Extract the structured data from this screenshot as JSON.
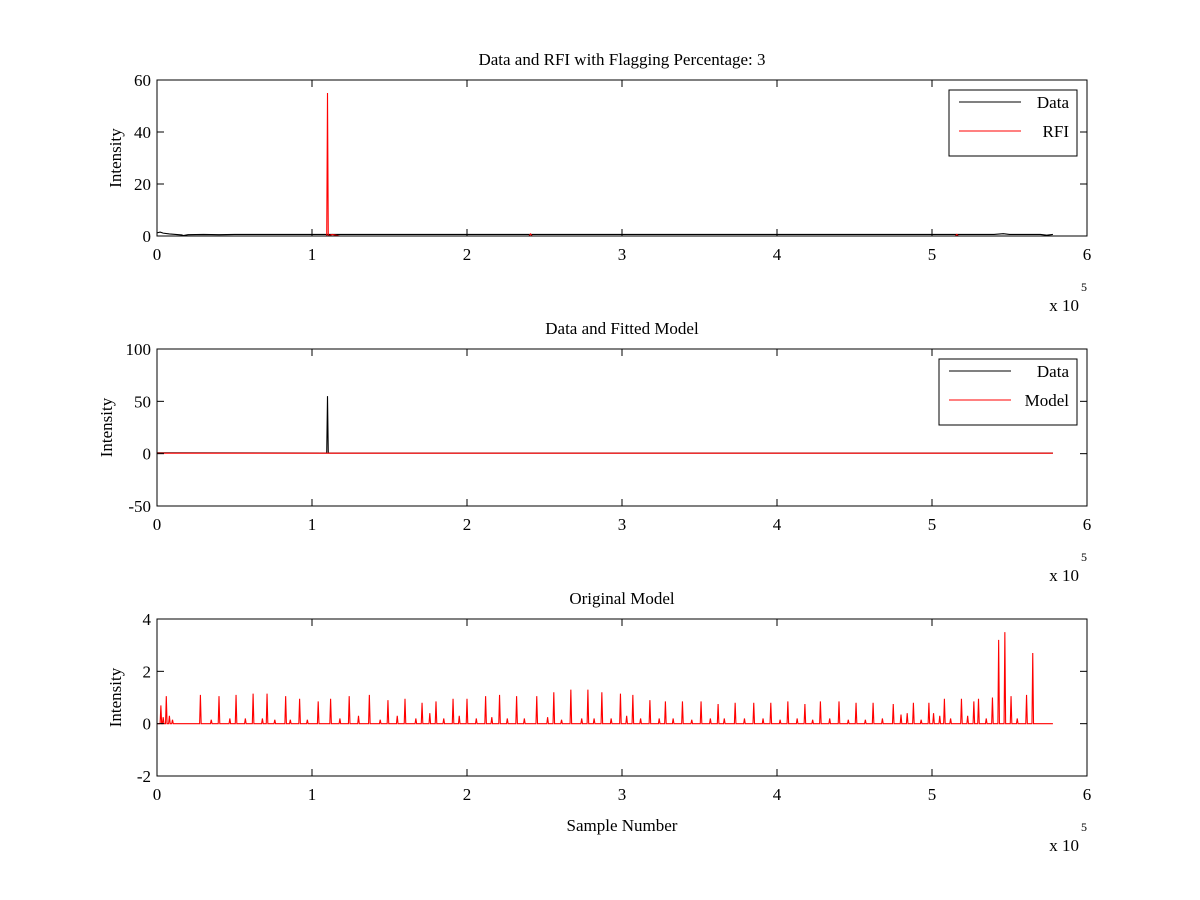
{
  "chart_data": [
    {
      "type": "line",
      "title": "Data and RFI with Flagging Percentage: 3",
      "xlabel": "",
      "ylabel": "Intensity",
      "xlim": [
        0,
        600000
      ],
      "ylim": [
        0,
        60
      ],
      "xticks": [
        0,
        1,
        2,
        3,
        4,
        5,
        6
      ],
      "yticks": [
        0,
        20,
        40,
        60
      ],
      "x_multiplier_base": "x 10",
      "x_multiplier_exp": "5",
      "legend_placement": "top-right",
      "legend": [
        "Data",
        "RFI"
      ],
      "grid": false,
      "series": [
        {
          "name": "Data",
          "color": "#000000",
          "x": [
            0,
            2000,
            4000,
            8000,
            12000,
            16000,
            17000,
            20000,
            30000,
            40000,
            50000,
            80000,
            110000,
            150000,
            200000,
            250000,
            300000,
            350000,
            400000,
            450000,
            500000,
            540000,
            546000,
            550000,
            570000,
            574000,
            578000
          ],
          "y": [
            1.2,
            1.5,
            1.1,
            0.8,
            0.6,
            0.4,
            0.2,
            0.5,
            0.6,
            0.5,
            0.6,
            0.6,
            0.6,
            0.6,
            0.6,
            0.6,
            0.6,
            0.6,
            0.6,
            0.6,
            0.6,
            0.6,
            0.9,
            0.6,
            0.6,
            0.3,
            0.6
          ]
        },
        {
          "name": "RFI",
          "color": "#ff0000",
          "x": [
            0,
            109500,
            110000,
            110500,
            113000,
            118000,
            240000,
            241000,
            242000,
            515000,
            516000,
            517000
          ],
          "y": [
            0,
            0,
            55,
            0,
            0.6,
            0,
            0,
            0.8,
            0,
            0,
            0.6,
            0
          ]
        }
      ]
    },
    {
      "type": "line",
      "title": "Data and Fitted Model",
      "xlabel": "",
      "ylabel": "Intensity",
      "xlim": [
        0,
        600000
      ],
      "ylim": [
        -50,
        100
      ],
      "xticks": [
        0,
        1,
        2,
        3,
        4,
        5,
        6
      ],
      "yticks": [
        -50,
        0,
        50,
        100
      ],
      "x_multiplier_base": "x 10",
      "x_multiplier_exp": "5",
      "legend_placement": "top-right",
      "legend": [
        "Data",
        "Model"
      ],
      "grid": false,
      "series": [
        {
          "name": "Data",
          "color": "#000000",
          "x": [
            0,
            109500,
            110000,
            110500,
            578000
          ],
          "y": [
            0.8,
            0.6,
            55,
            0.6,
            0.6
          ]
        },
        {
          "name": "Model",
          "color": "#ff0000",
          "x": [
            0,
            578000
          ],
          "y": [
            0.5,
            0.5
          ]
        }
      ]
    },
    {
      "type": "line",
      "title": "Original Model",
      "xlabel": "Sample Number",
      "ylabel": "Intensity",
      "xlim": [
        0,
        600000
      ],
      "ylim": [
        -2,
        4
      ],
      "xticks": [
        0,
        1,
        2,
        3,
        4,
        5,
        6
      ],
      "yticks": [
        -2,
        0,
        2,
        4
      ],
      "x_multiplier_base": "x 10",
      "x_multiplier_exp": "5",
      "legend_placement": "none",
      "grid": false,
      "series": [
        {
          "name": "",
          "color": "#ff0000",
          "baseline": 0,
          "x_end": 578000,
          "peaks": [
            [
              2500,
              0.7
            ],
            [
              4000,
              0.25
            ],
            [
              6000,
              1.05
            ],
            [
              8000,
              0.3
            ],
            [
              10000,
              0.15
            ],
            [
              28000,
              1.1
            ],
            [
              35000,
              0.15
            ],
            [
              40000,
              1.05
            ],
            [
              47000,
              0.2
            ],
            [
              51000,
              1.1
            ],
            [
              57000,
              0.2
            ],
            [
              62000,
              1.15
            ],
            [
              68000,
              0.2
            ],
            [
              71000,
              1.15
            ],
            [
              76000,
              0.15
            ],
            [
              83000,
              1.05
            ],
            [
              86000,
              0.15
            ],
            [
              92000,
              0.95
            ],
            [
              97000,
              0.15
            ],
            [
              104000,
              0.85
            ],
            [
              112000,
              0.95
            ],
            [
              118000,
              0.2
            ],
            [
              124000,
              1.05
            ],
            [
              130000,
              0.3
            ],
            [
              137000,
              1.1
            ],
            [
              144000,
              0.15
            ],
            [
              149000,
              0.9
            ],
            [
              155000,
              0.3
            ],
            [
              160000,
              0.95
            ],
            [
              167000,
              0.2
            ],
            [
              171000,
              0.8
            ],
            [
              176000,
              0.4
            ],
            [
              180000,
              0.85
            ],
            [
              185000,
              0.2
            ],
            [
              191000,
              0.95
            ],
            [
              195000,
              0.3
            ],
            [
              200000,
              0.95
            ],
            [
              206000,
              0.2
            ],
            [
              212000,
              1.05
            ],
            [
              216000,
              0.25
            ],
            [
              221000,
              1.1
            ],
            [
              226000,
              0.2
            ],
            [
              232000,
              1.05
            ],
            [
              237000,
              0.2
            ],
            [
              245000,
              1.05
            ],
            [
              252000,
              0.25
            ],
            [
              256000,
              1.2
            ],
            [
              261000,
              0.15
            ],
            [
              267000,
              1.3
            ],
            [
              274000,
              0.2
            ],
            [
              278000,
              1.3
            ],
            [
              282000,
              0.2
            ],
            [
              287000,
              1.2
            ],
            [
              293000,
              0.2
            ],
            [
              299000,
              1.15
            ],
            [
              303000,
              0.3
            ],
            [
              307000,
              1.1
            ],
            [
              312000,
              0.2
            ],
            [
              318000,
              0.9
            ],
            [
              324000,
              0.2
            ],
            [
              328000,
              0.85
            ],
            [
              333000,
              0.2
            ],
            [
              339000,
              0.85
            ],
            [
              345000,
              0.15
            ],
            [
              351000,
              0.85
            ],
            [
              357000,
              0.2
            ],
            [
              362000,
              0.75
            ],
            [
              366000,
              0.2
            ],
            [
              373000,
              0.8
            ],
            [
              379000,
              0.2
            ],
            [
              385000,
              0.8
            ],
            [
              391000,
              0.2
            ],
            [
              396000,
              0.8
            ],
            [
              402000,
              0.15
            ],
            [
              407000,
              0.85
            ],
            [
              413000,
              0.2
            ],
            [
              418000,
              0.75
            ],
            [
              423000,
              0.15
            ],
            [
              428000,
              0.85
            ],
            [
              434000,
              0.2
            ],
            [
              440000,
              0.85
            ],
            [
              446000,
              0.15
            ],
            [
              451000,
              0.8
            ],
            [
              457000,
              0.15
            ],
            [
              462000,
              0.8
            ],
            [
              468000,
              0.2
            ],
            [
              475000,
              0.75
            ],
            [
              480000,
              0.35
            ],
            [
              484000,
              0.4
            ],
            [
              488000,
              0.8
            ],
            [
              493000,
              0.15
            ],
            [
              498000,
              0.8
            ],
            [
              501000,
              0.4
            ],
            [
              505000,
              0.3
            ],
            [
              508000,
              0.95
            ],
            [
              512000,
              0.2
            ],
            [
              519000,
              0.95
            ],
            [
              523000,
              0.3
            ],
            [
              527000,
              0.85
            ],
            [
              530000,
              0.95
            ],
            [
              535000,
              0.2
            ],
            [
              539000,
              1.0
            ],
            [
              543000,
              3.2
            ],
            [
              547000,
              3.5
            ],
            [
              551000,
              1.05
            ],
            [
              555000,
              0.2
            ],
            [
              561000,
              1.1
            ],
            [
              565000,
              2.7
            ]
          ]
        }
      ]
    }
  ]
}
